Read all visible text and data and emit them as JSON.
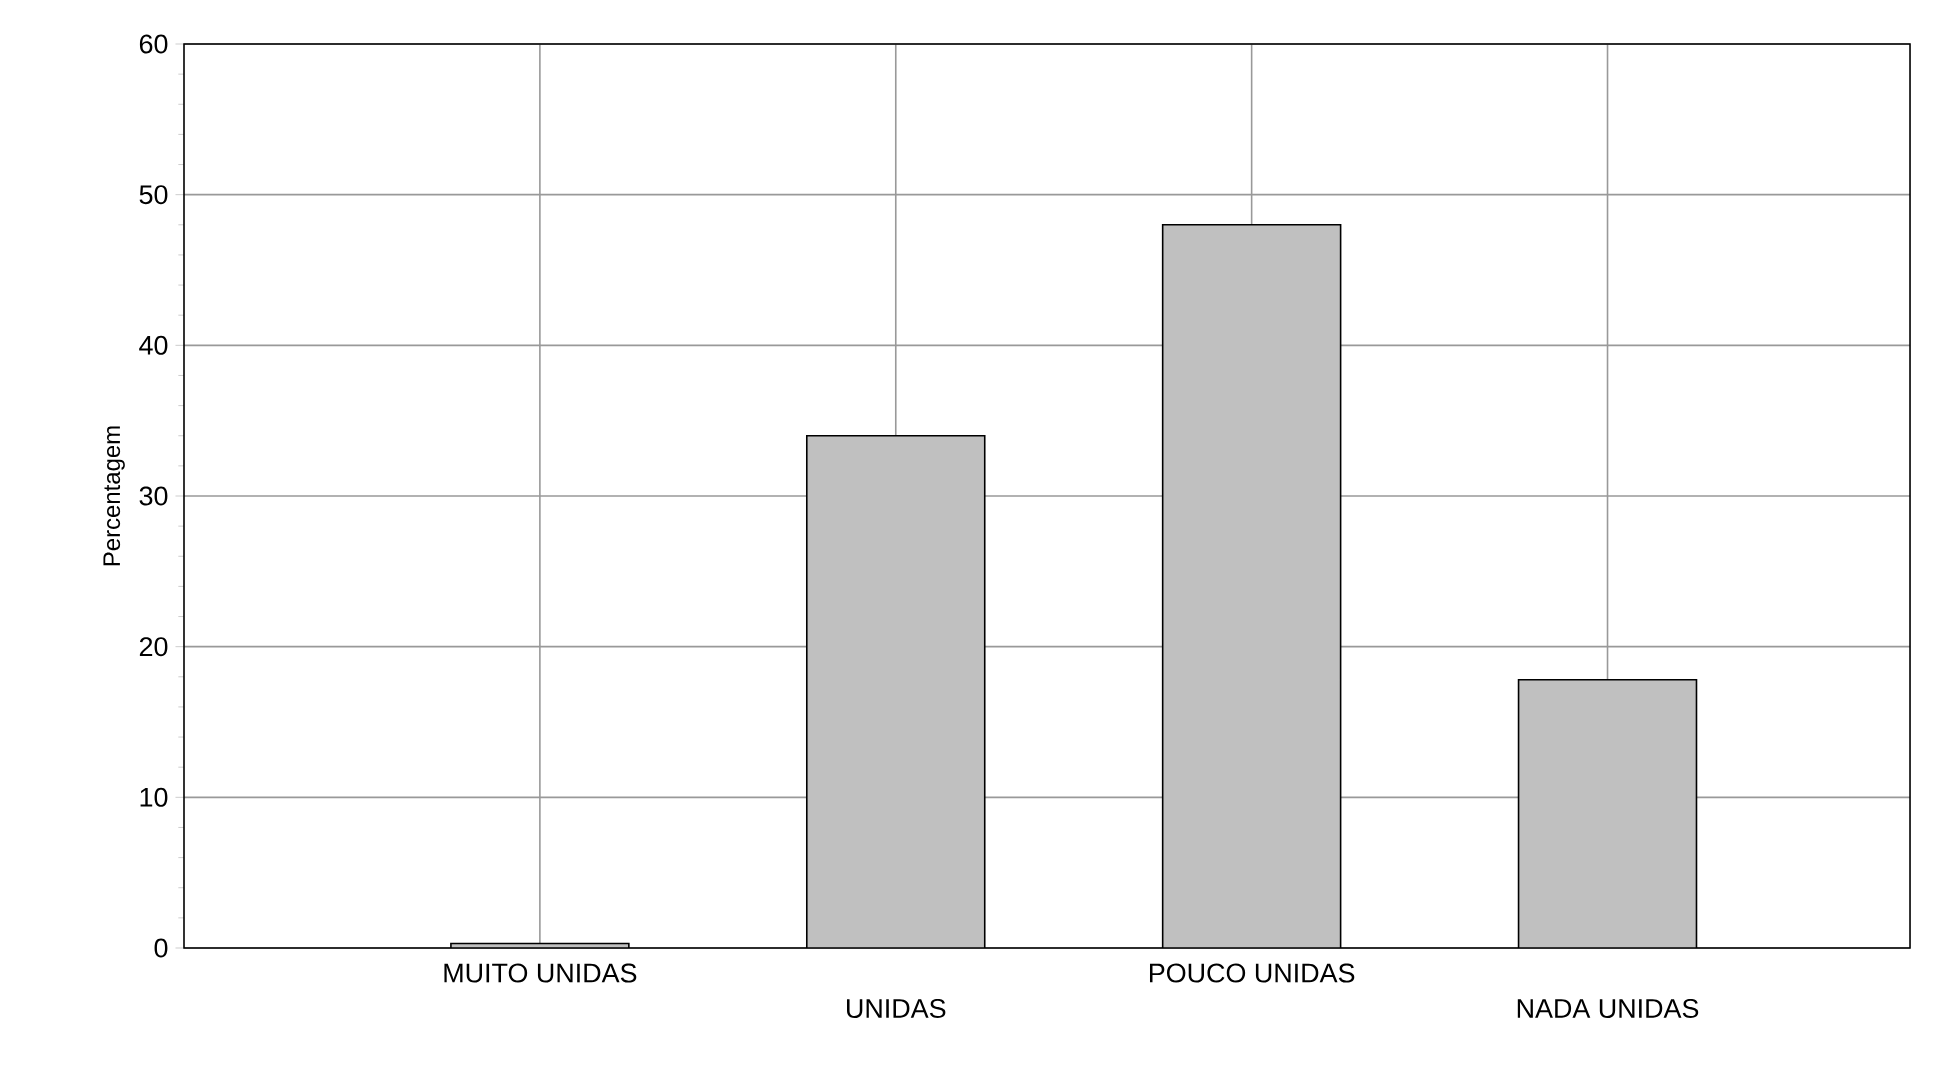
{
  "chart_data": {
    "type": "bar",
    "ylabel": "Percentagem",
    "categories": [
      "MUITO UNIDAS",
      "UNIDAS",
      "POUCO UNIDAS",
      "NADA UNIDAS"
    ],
    "values": [
      0.3,
      34,
      48,
      17.8
    ],
    "color": "#c0c0c0",
    "ylim": [
      0,
      60
    ],
    "yticks": [
      0,
      10,
      20,
      30,
      40,
      50,
      60
    ],
    "grid": true
  }
}
